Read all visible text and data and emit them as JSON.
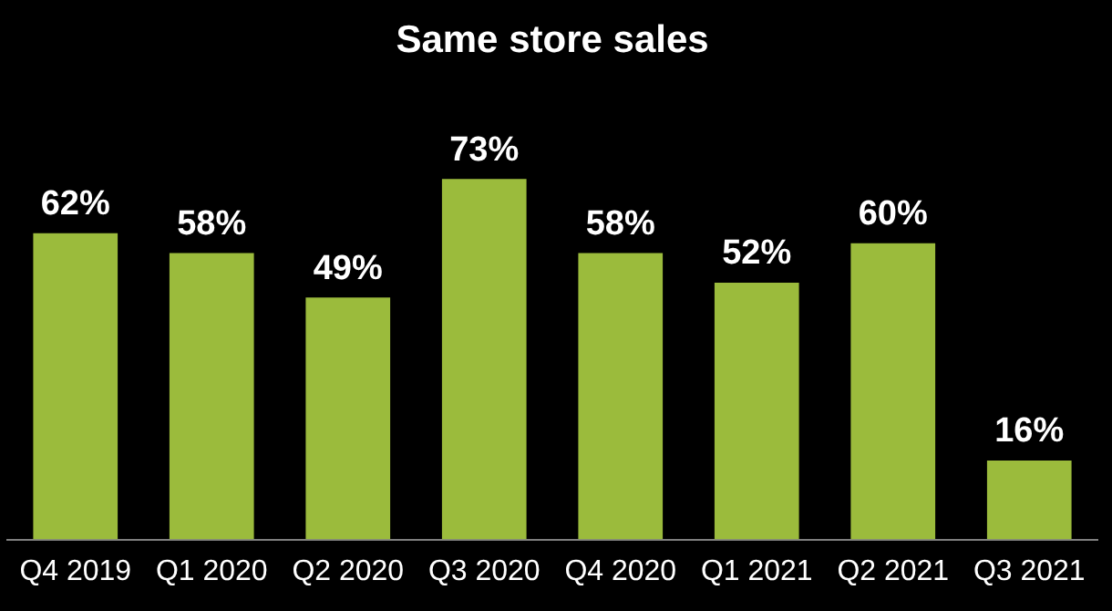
{
  "chart_data": {
    "type": "bar",
    "title": "Same store sales",
    "categories": [
      "Q4 2019",
      "Q1 2020",
      "Q2 2020",
      "Q3 2020",
      "Q4 2020",
      "Q1 2021",
      "Q2 2021",
      "Q3 2021"
    ],
    "values": [
      62,
      58,
      49,
      73,
      58,
      52,
      60,
      16
    ],
    "value_labels": [
      "62%",
      "58%",
      "49%",
      "73%",
      "58%",
      "52%",
      "60%",
      "16%"
    ],
    "color": "#9bbb3c",
    "legend": false,
    "tick_labels": "x"
  }
}
